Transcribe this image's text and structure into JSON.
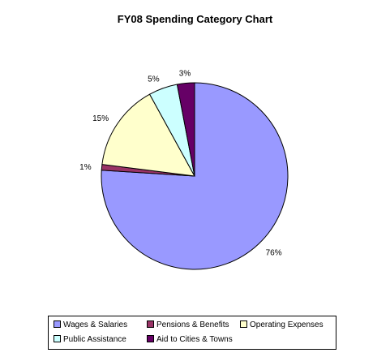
{
  "chart_data": {
    "type": "pie",
    "title": "FY08 Spending Category Chart",
    "categories": [
      "Wages & Salaries",
      "Pensions & Benefits",
      "Operating Expenses",
      "Public Assistance",
      "Aid to Cities & Towns"
    ],
    "values": [
      76,
      1,
      15,
      5,
      3
    ],
    "labels": [
      "76%",
      "1%",
      "15%",
      "5%",
      "3%"
    ],
    "colors": [
      "#9999ff",
      "#993366",
      "#ffffcc",
      "#ccffff",
      "#660066"
    ],
    "legend_placement": "bottom"
  }
}
